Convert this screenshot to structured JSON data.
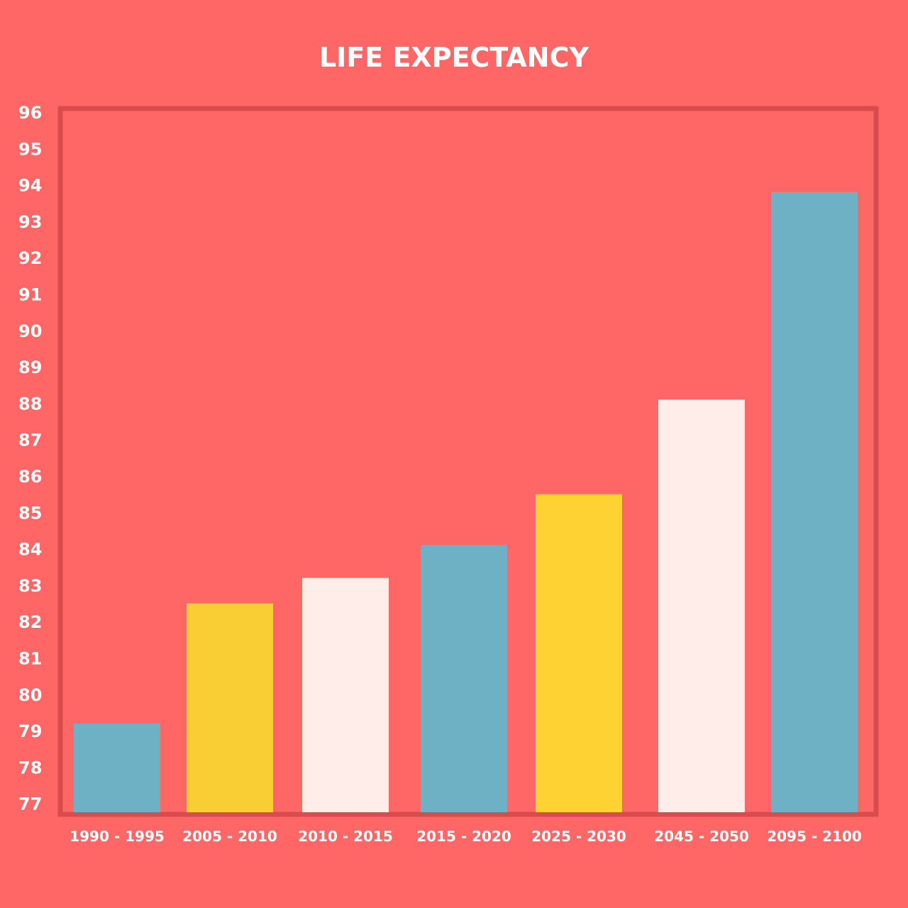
{
  "chart_data": {
    "type": "bar",
    "title": "LIFE EXPECTANCY",
    "xlabel": "",
    "ylabel": "",
    "categories": [
      "1990 - 1995",
      "2005 - 2010",
      "2010 - 2015",
      "2015 - 2020",
      "2025 - 2030",
      "2045 - 2050",
      "2095 - 2100"
    ],
    "values": [
      79.2,
      82.5,
      83.2,
      84.1,
      85.5,
      88.1,
      93.8
    ],
    "bar_colors": [
      "#6fb1c4",
      "#f9ce35",
      "#ffedea",
      "#6fb1c4",
      "#ffd233",
      "#ffedea",
      "#6fb1c4"
    ],
    "ylim": [
      76.8,
      96
    ],
    "yticks": [
      96,
      95,
      94,
      93,
      92,
      91,
      90,
      89,
      88,
      87,
      86,
      85,
      84,
      83,
      82,
      81,
      80,
      79,
      78,
      77
    ],
    "grid": false,
    "legend": "none"
  },
  "colors": {
    "background": "#ff6766",
    "frame": "#d94c4d",
    "text": "#ffffff"
  }
}
